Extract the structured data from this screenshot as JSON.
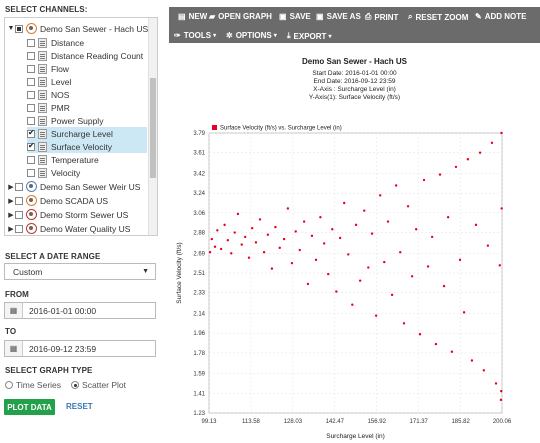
{
  "channels": {
    "heading": "SELECT CHANNELS:",
    "groups": [
      {
        "name": "Demo San Sewer - Hach US",
        "expanded": true,
        "channels": [
          {
            "label": "Distance",
            "checked": false
          },
          {
            "label": "Distance Reading Count",
            "checked": false
          },
          {
            "label": "Flow",
            "checked": false
          },
          {
            "label": "Level",
            "checked": false
          },
          {
            "label": "NOS",
            "checked": false
          },
          {
            "label": "PMR",
            "checked": false
          },
          {
            "label": "Power Supply",
            "checked": false
          },
          {
            "label": "Surcharge Level",
            "checked": true
          },
          {
            "label": "Surface Velocity",
            "checked": true
          },
          {
            "label": "Temperature",
            "checked": false
          },
          {
            "label": "Velocity",
            "checked": false
          }
        ]
      },
      {
        "name": "Demo San Sewer Weir US",
        "expanded": false
      },
      {
        "name": "Demo SCADA US",
        "expanded": false
      },
      {
        "name": "Demo Storm Sewer US",
        "expanded": false
      },
      {
        "name": "Demo Water Quality US",
        "expanded": false
      }
    ]
  },
  "date_range": {
    "heading": "SELECT A DATE RANGE",
    "selected": "Custom"
  },
  "from": {
    "heading": "FROM",
    "value": "2016-01-01 00:00"
  },
  "to": {
    "heading": "TO",
    "value": "2016-09-12 23:59"
  },
  "graph_type": {
    "heading": "SELECT GRAPH TYPE",
    "options": [
      "Time Series",
      "Scatter Plot"
    ],
    "selected": "Scatter Plot"
  },
  "actions": {
    "plot": "PLOT DATA",
    "reset": "RESET"
  },
  "toolbar": {
    "row1": [
      {
        "label": "NEW",
        "icon": "file-icon"
      },
      {
        "label": "OPEN GRAPH",
        "icon": "folder-open-icon"
      },
      {
        "label": "SAVE",
        "icon": "save-icon"
      },
      {
        "label": "SAVE AS",
        "icon": "save-as-icon"
      },
      {
        "label": "PRINT",
        "icon": "print-icon"
      },
      {
        "label": "RESET ZOOM",
        "icon": "zoom-icon"
      },
      {
        "label": "ADD NOTE",
        "icon": "pencil-icon"
      }
    ],
    "row2": [
      {
        "label": "TOOLS",
        "icon": "wrench-icon"
      },
      {
        "label": "OPTIONS",
        "icon": "gear-icon"
      },
      {
        "label": "EXPORT",
        "icon": "download-icon"
      }
    ]
  },
  "chart_header": {
    "title": "Demo San Sewer - Hach US",
    "start": "Start Date: 2016-01-01 00:00",
    "end": "End Date: 2016-09-12 23:59",
    "xaxis": "X-Axis : Surcharge Level (in)",
    "yaxis": "Y-Axis(1): Surface Velocity (ft/s)"
  },
  "chart_data": {
    "type": "scatter",
    "legend": "Surface Velocity (ft/s) vs. Surcharge Level (in)",
    "legend_placement": "top-left",
    "xlabel": "Surcharge Level (in)",
    "ylabel": "Surface Velocity (ft/s)",
    "x_ticks": [
      "99.13",
      "113.58",
      "128.03",
      "142.47",
      "156.92",
      "171.37",
      "185.82",
      "200.06"
    ],
    "y_ticks": [
      "1.23",
      "1.41",
      "1.59",
      "1.78",
      "1.96",
      "2.14",
      "2.33",
      "2.51",
      "2.69",
      "2.88",
      "3.06",
      "3.24",
      "3.42",
      "3.61",
      "3.79"
    ],
    "xlim": [
      99.13,
      200.06
    ],
    "ylim": [
      1.23,
      3.79
    ],
    "grid": true,
    "color": "#e8001c",
    "points": [
      [
        99.5,
        2.7
      ],
      [
        100.1,
        2.82
      ],
      [
        101.2,
        2.75
      ],
      [
        102.0,
        2.9
      ],
      [
        103.3,
        2.73
      ],
      [
        104.5,
        2.95
      ],
      [
        105.6,
        2.81
      ],
      [
        106.8,
        2.69
      ],
      [
        108.0,
        2.88
      ],
      [
        109.1,
        3.05
      ],
      [
        110.4,
        2.77
      ],
      [
        111.6,
        2.84
      ],
      [
        112.9,
        2.65
      ],
      [
        114.0,
        2.92
      ],
      [
        115.3,
        2.79
      ],
      [
        116.7,
        3.0
      ],
      [
        118.1,
        2.7
      ],
      [
        119.4,
        2.86
      ],
      [
        120.8,
        2.55
      ],
      [
        122.0,
        2.93
      ],
      [
        123.5,
        2.74
      ],
      [
        125.0,
        2.82
      ],
      [
        126.3,
        3.1
      ],
      [
        127.7,
        2.6
      ],
      [
        129.0,
        2.89
      ],
      [
        130.4,
        2.72
      ],
      [
        131.9,
        2.98
      ],
      [
        133.2,
        2.41
      ],
      [
        134.6,
        2.85
      ],
      [
        136.0,
        2.63
      ],
      [
        137.5,
        3.02
      ],
      [
        138.8,
        2.78
      ],
      [
        140.2,
        2.5
      ],
      [
        141.6,
        2.91
      ],
      [
        143.0,
        2.34
      ],
      [
        144.3,
        2.83
      ],
      [
        145.7,
        3.15
      ],
      [
        147.1,
        2.68
      ],
      [
        148.5,
        2.22
      ],
      [
        149.8,
        2.95
      ],
      [
        151.2,
        2.44
      ],
      [
        152.6,
        3.08
      ],
      [
        154.0,
        2.56
      ],
      [
        155.3,
        2.87
      ],
      [
        156.7,
        2.12
      ],
      [
        158.1,
        3.22
      ],
      [
        159.5,
        2.61
      ],
      [
        160.8,
        2.98
      ],
      [
        162.2,
        2.31
      ],
      [
        163.6,
        3.31
      ],
      [
        165.0,
        2.7
      ],
      [
        166.3,
        2.05
      ],
      [
        167.7,
        3.12
      ],
      [
        169.1,
        2.48
      ],
      [
        170.5,
        2.91
      ],
      [
        171.8,
        1.95
      ],
      [
        173.2,
        3.36
      ],
      [
        174.6,
        2.57
      ],
      [
        176.0,
        2.84
      ],
      [
        177.3,
        1.86
      ],
      [
        178.7,
        3.41
      ],
      [
        180.1,
        2.39
      ],
      [
        181.5,
        3.02
      ],
      [
        182.8,
        1.79
      ],
      [
        184.2,
        3.48
      ],
      [
        185.6,
        2.63
      ],
      [
        187.0,
        2.15
      ],
      [
        188.3,
        3.55
      ],
      [
        189.7,
        1.71
      ],
      [
        191.1,
        2.95
      ],
      [
        192.5,
        3.61
      ],
      [
        193.8,
        1.62
      ],
      [
        195.2,
        2.76
      ],
      [
        196.6,
        3.7
      ],
      [
        198.0,
        1.5
      ],
      [
        199.3,
        2.58
      ],
      [
        199.8,
        1.43
      ],
      [
        199.9,
        3.79
      ],
      [
        199.7,
        1.35
      ],
      [
        199.95,
        3.1
      ]
    ]
  }
}
